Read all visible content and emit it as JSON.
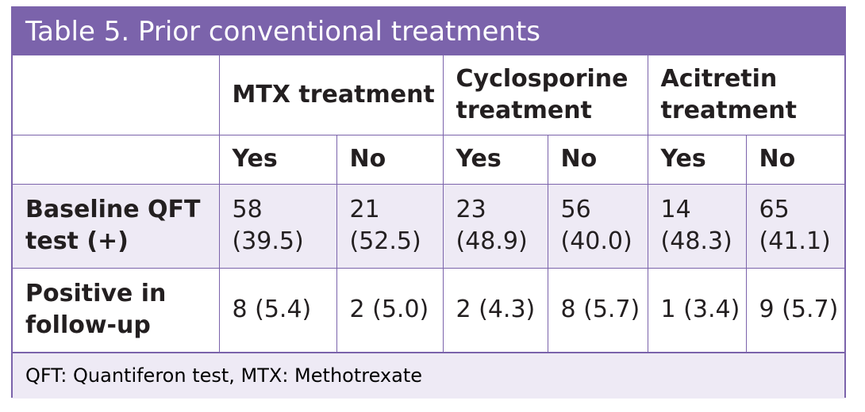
{
  "title": "Table 5. Prior conventional treatments",
  "header": {
    "groups": [
      "MTX treatment",
      "Cyclosporine treatment",
      "Acitretin treatment"
    ],
    "subcols": [
      "Yes",
      "No",
      "Yes",
      "No",
      "Yes",
      "No"
    ]
  },
  "rows": [
    {
      "label": "Baseline QFT test (+)",
      "cells": [
        "58 (39.5)",
        "21 (52.5)",
        "23 (48.9)",
        "56 (40.0)",
        "14 (48.3)",
        "65 (41.1)"
      ]
    },
    {
      "label": "Positive in follow-up",
      "cells": [
        "8 (5.4)",
        "2 (5.0)",
        "2 (4.3)",
        "8 (5.7)",
        "1 (3.4)",
        "9 (5.7)"
      ]
    }
  ],
  "footnote": "QFT: Quantiferon test, MTX: Methotrexate",
  "colors": {
    "accent": "#7b63ab",
    "shade": "#eeeaf5",
    "text": "#231f20"
  }
}
